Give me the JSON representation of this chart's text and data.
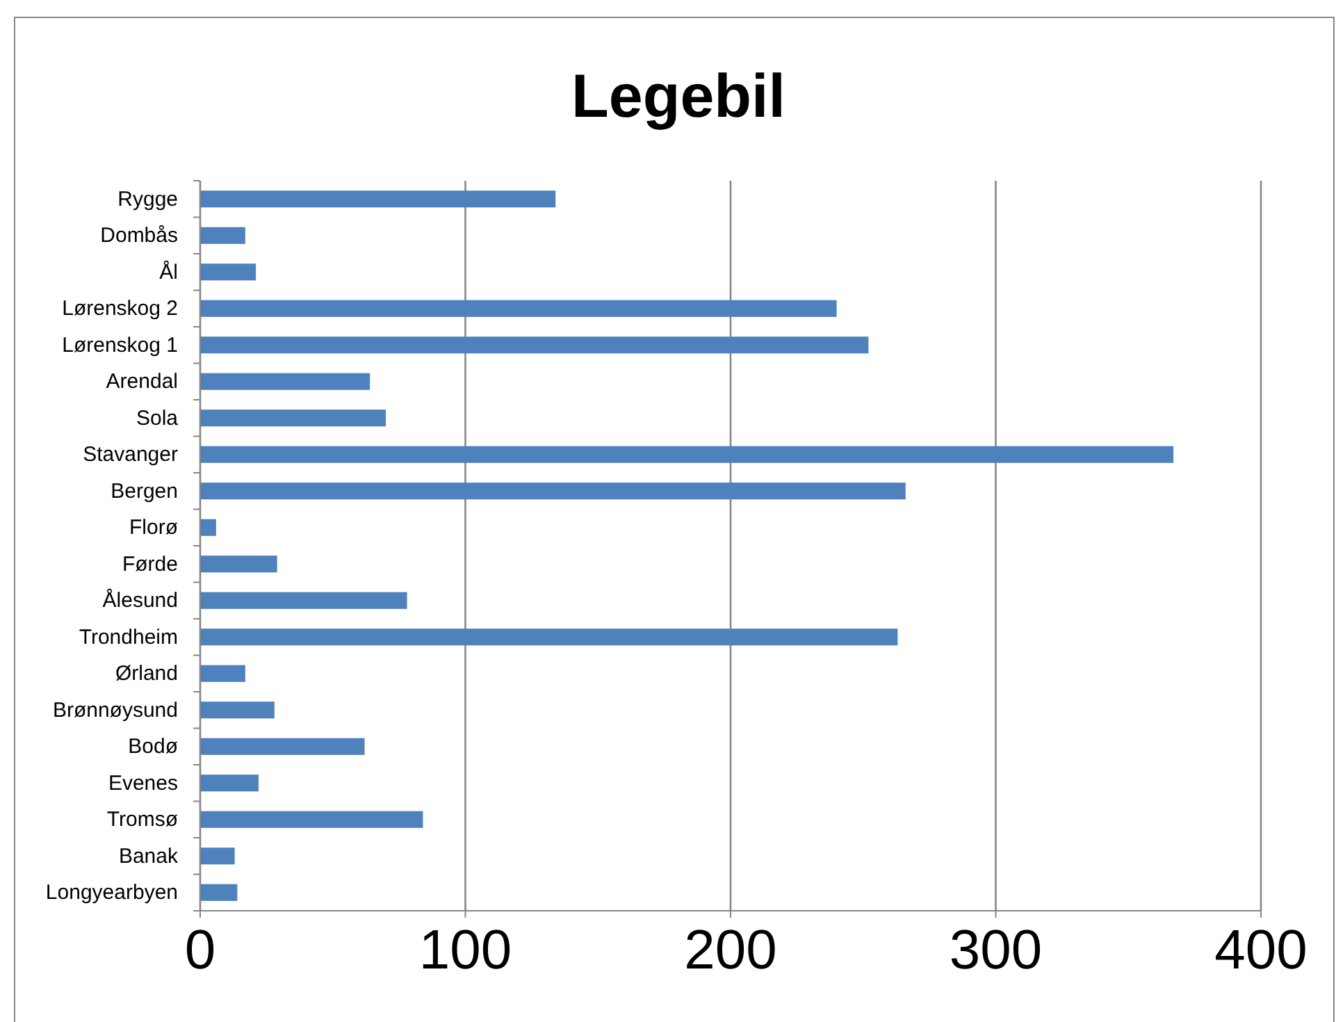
{
  "chart_data": {
    "type": "bar",
    "title": "Legebil",
    "orientation": "horizontal",
    "categories": [
      "Rygge",
      "Dombås",
      "Ål",
      "Lørenskog 2",
      "Lørenskog 1",
      "Arendal",
      "Sola",
      "Stavanger",
      "Bergen",
      "Florø",
      "Førde",
      "Ålesund",
      "Trondheim",
      "Ørland",
      "Brønnøysund",
      "Bodø",
      "Evenes",
      "Tromsø",
      "Banak",
      "Longyearbyen"
    ],
    "values": [
      134,
      17,
      21,
      240,
      252,
      64,
      70,
      367,
      266,
      6,
      29,
      78,
      263,
      17,
      28,
      62,
      22,
      84,
      13,
      14
    ],
    "color": "#4f81bd",
    "xlim": [
      0,
      400
    ],
    "xticks": [
      0,
      100,
      200,
      300,
      400
    ],
    "grid": "x"
  }
}
